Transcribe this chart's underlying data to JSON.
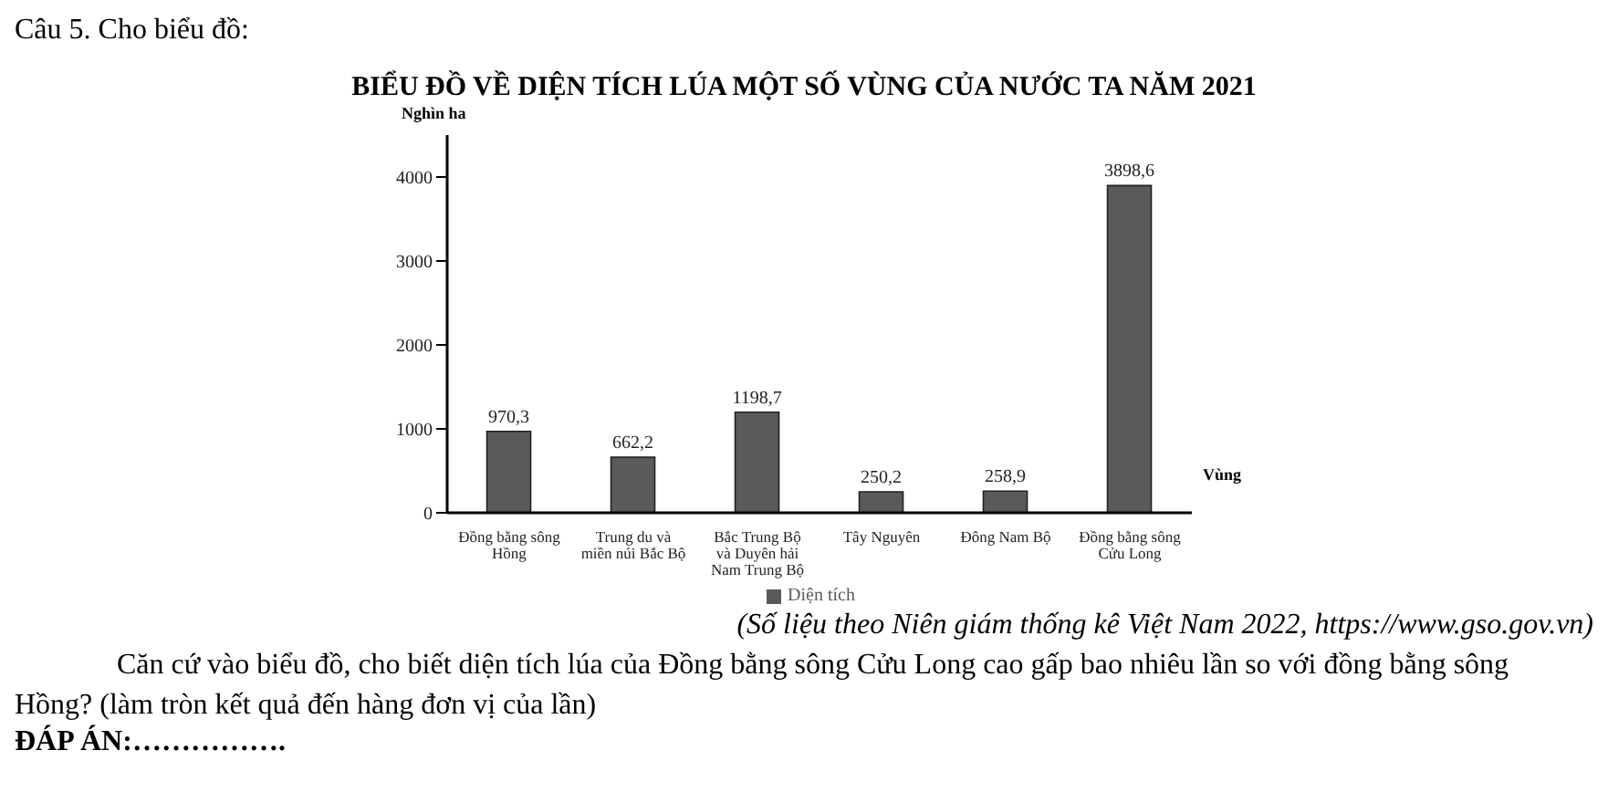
{
  "chart_data": {
    "type": "bar",
    "title": "BIỂU ĐỒ VỀ DIỆN TÍCH LÚA MỘT SỐ VÙNG CỦA NƯỚC TA NĂM 2021",
    "xlabel": "Vùng",
    "ylabel": "Nghìn ha",
    "categories": [
      "Đồng bằng sông\nHồng",
      "Trung du và\nmiền núi Bắc Bộ",
      "Bắc Trung Bộ\nvà Duyên hải\nNam Trung Bộ",
      "Tây Nguyên",
      "Đông Nam Bộ",
      "Đồng bằng sông\nCửu Long"
    ],
    "series": [
      {
        "name": "Diện tích",
        "color": "#5a5a5a",
        "values": [
          970.3,
          662.2,
          1198.7,
          250.2,
          258.9,
          3898.6
        ],
        "value_labels": [
          "970,3",
          "662,2",
          "1198,7",
          "250,2",
          "258,9",
          "3898,6"
        ]
      }
    ],
    "ylim": [
      0,
      4500
    ],
    "yticks": [
      0,
      1000,
      2000,
      3000,
      4000
    ],
    "grid": false,
    "legend": "bottom",
    "annotations": [
      "Câu 5. Cho biểu đồ:",
      "(Số liệu theo Niên giám thống kê Việt Nam 2022, https://www.gso.gov.vn)",
      "Căn cứ vào biểu đồ, cho biết diện tích lúa của Đồng bằng sông Cửu Long cao gấp bao nhiêu lần so với đồng bằng sông Hồng? (làm tròn kết quả đến hàng đơn vị của lần)",
      "ĐÁP ÁN:……………."
    ]
  }
}
